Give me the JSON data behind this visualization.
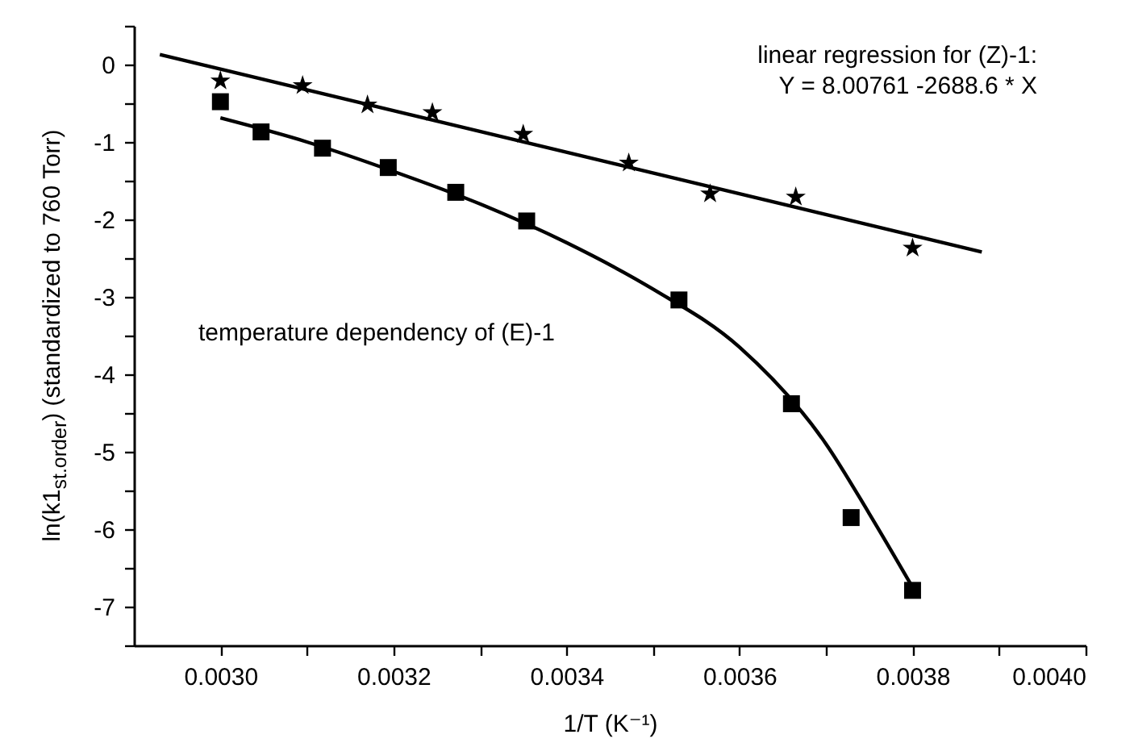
{
  "chart_data": {
    "type": "scatter",
    "xlabel": "1/T (K⁻¹)",
    "ylabel": "ln(k1$_{st.order}$) (standardized to 760 Torr)",
    "annotations": [
      "linear regression for (Z)-1:",
      "Y = 8.00761 -2688.6 * X",
      "temperature dependency of (E)-1"
    ],
    "xlim": [
      0.0029,
      0.004
    ],
    "ylim": [
      -7.5,
      0.5
    ],
    "xticks": [
      {
        "value": 0.003,
        "label": "0.0030"
      },
      {
        "value": 0.0031,
        "label": null
      },
      {
        "value": 0.0032,
        "label": "0.0032"
      },
      {
        "value": 0.0033,
        "label": null
      },
      {
        "value": 0.0034,
        "label": "0.0034"
      },
      {
        "value": 0.0035,
        "label": null
      },
      {
        "value": 0.0036,
        "label": "0.0036"
      },
      {
        "value": 0.0037,
        "label": null
      },
      {
        "value": 0.0038,
        "label": "0.0038"
      },
      {
        "value": 0.0039,
        "label": null
      },
      {
        "value": 0.004,
        "label": "0.0040"
      }
    ],
    "yticks": [
      {
        "value": 0.5,
        "label": null
      },
      0,
      {
        "value": -0.5,
        "label": null
      },
      -1,
      {
        "value": -1.5,
        "label": null
      },
      -2,
      {
        "value": -2.5,
        "label": null
      },
      -3,
      {
        "value": -3.5,
        "label": null
      },
      -4,
      {
        "value": -4.5,
        "label": null
      },
      -5,
      {
        "value": -5.5,
        "label": null
      },
      -6,
      {
        "value": -6.5,
        "label": null
      },
      -7,
      {
        "value": -7.5,
        "label": null
      }
    ],
    "grid": false,
    "series": [
      {
        "type": "scatter",
        "marker": "star",
        "color": "#000000",
        "x": [
          0.003,
          0.003095,
          0.00317,
          0.003245,
          0.00335,
          0.003472,
          0.003566,
          0.003665,
          0.0038
        ],
        "values": [
          -0.21,
          -0.27,
          -0.52,
          -0.62,
          -0.9,
          -1.27,
          -1.67,
          -1.71,
          -2.37
        ]
      },
      {
        "type": "line",
        "marker": "none",
        "color": "#000000",
        "x": [
          0.00293,
          0.00388
        ],
        "values": [
          0.13,
          -2.42
        ]
      },
      {
        "type": "scatter",
        "marker": "square",
        "color": "#000000",
        "x": [
          0.003,
          0.003047,
          0.003118,
          0.003194,
          0.003272,
          0.003354,
          0.00353,
          0.00366,
          0.003729,
          0.0038
        ],
        "values": [
          -0.48,
          -0.87,
          -1.08,
          -1.33,
          -1.65,
          -2.02,
          -3.04,
          -4.38,
          -5.85,
          -6.79
        ]
      },
      {
        "type": "line",
        "marker": "none",
        "color": "#000000",
        "x": [
          0.003,
          0.0031,
          0.0032,
          0.0033,
          0.0034,
          0.0035,
          0.0036,
          0.0037,
          0.00375,
          0.0038
        ],
        "values": [
          -0.69,
          -1.0,
          -1.38,
          -1.8,
          -2.3,
          -2.9,
          -3.65,
          -4.9,
          -5.8,
          -6.75
        ]
      }
    ]
  }
}
